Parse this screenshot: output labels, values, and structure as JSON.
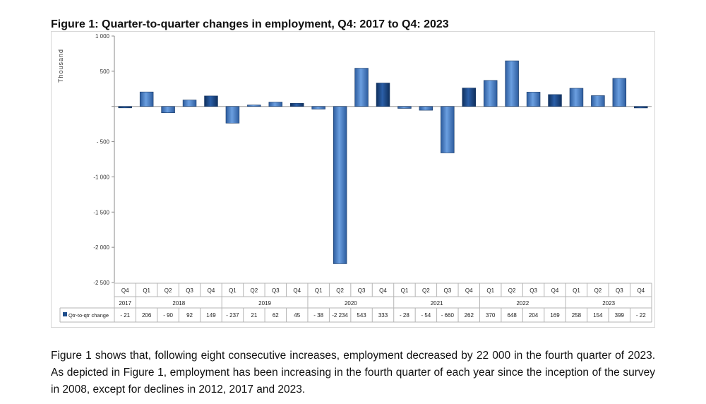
{
  "figure_title": "Figure 1: Quarter-to-quarter changes in employment, Q4: 2017 to Q4: 2023",
  "caption": "Figure 1 shows that, following eight consecutive increases, employment decreased by 22 000 in the fourth quarter of 2023. As depicted in Figure 1, employment has been increasing in the fourth quarter of each year since the inception of the survey in 2008, except for declines in 2012, 2017 and 2023.",
  "colors": {
    "bar_light": "#5b8fd6",
    "bar_dark": "#1f4e8c",
    "grid": "#999999"
  },
  "chart_data": {
    "type": "bar",
    "ylabel": "Thousand",
    "ylim": [
      -2500,
      1000
    ],
    "yticks": [
      1000,
      500,
      0,
      -500,
      -1000,
      -1500,
      -2000,
      -2500
    ],
    "ytick_labels": [
      "1 000",
      "500",
      "",
      "- 500",
      "-1 000",
      "-1 500",
      "-2 000",
      "-2 500"
    ],
    "quarters": [
      "Q4",
      "Q1",
      "Q2",
      "Q3",
      "Q4",
      "Q1",
      "Q2",
      "Q3",
      "Q4",
      "Q1",
      "Q2",
      "Q3",
      "Q4",
      "Q1",
      "Q2",
      "Q3",
      "Q4",
      "Q1",
      "Q2",
      "Q3",
      "Q4",
      "Q1",
      "Q2",
      "Q3",
      "Q4"
    ],
    "years": [
      {
        "label": "2017",
        "span": 1
      },
      {
        "label": "2018",
        "span": 4
      },
      {
        "label": "2019",
        "span": 4
      },
      {
        "label": "2020",
        "span": 4
      },
      {
        "label": "2021",
        "span": 4
      },
      {
        "label": "2022",
        "span": 4
      },
      {
        "label": "2023",
        "span": 4
      }
    ],
    "series": [
      {
        "name": "Qtr-to-qtr change",
        "values": [
          -21,
          206,
          -90,
          92,
          149,
          -237,
          21,
          62,
          45,
          -38,
          -2234,
          543,
          333,
          -28,
          -54,
          -660,
          262,
          370,
          648,
          204,
          169,
          258,
          154,
          399,
          -22
        ],
        "value_labels": [
          "- 21",
          "206",
          "- 90",
          "92",
          "149",
          "- 237",
          "21",
          "62",
          "45",
          "- 38",
          "-2 234",
          "543",
          "333",
          "- 28",
          "- 54",
          "- 660",
          "262",
          "370",
          "648",
          "204",
          "169",
          "258",
          "154",
          "399",
          "- 22"
        ]
      }
    ]
  }
}
